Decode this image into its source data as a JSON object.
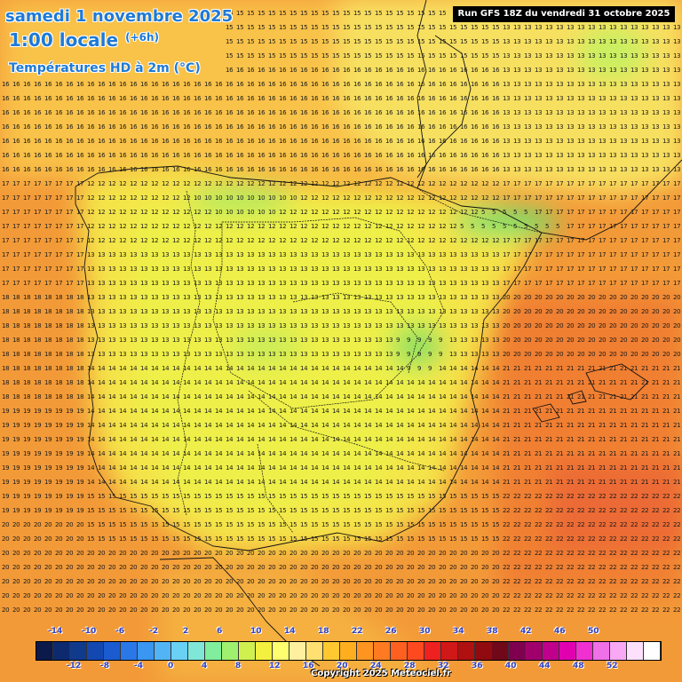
{
  "header": {
    "date_line": "samedi 1 novembre 2025",
    "time_line": "1:00 locale",
    "offset": "(+6h)",
    "variable": "Températures HD à 2m (°C)",
    "run_info": "Run GFS 18Z du vendredi 31 octobre 2025"
  },
  "legend": {
    "top_labels": [
      "-14",
      "-10",
      "-6",
      "-2",
      "2",
      "6",
      "10",
      "14",
      "18",
      "22",
      "26",
      "30",
      "34",
      "38",
      "42",
      "46",
      "50"
    ],
    "bottom_labels": [
      "-12",
      "-8",
      "-4",
      "0",
      "4",
      "8",
      "12",
      "16",
      "20",
      "24",
      "28",
      "32",
      "36",
      "40",
      "44",
      "48",
      "52"
    ],
    "colors": [
      "#0b1a4a",
      "#0d2a6e",
      "#103a8c",
      "#1248b0",
      "#1a5cd0",
      "#2a78e8",
      "#3a96f0",
      "#52b4f4",
      "#6ad0f4",
      "#80e6d8",
      "#80ee9c",
      "#a0f070",
      "#d0f050",
      "#f4f040",
      "#ffff70",
      "#fff0a0",
      "#ffe070",
      "#ffc830",
      "#ffae20",
      "#ff9420",
      "#ff7a20",
      "#ff6020",
      "#ff4a20",
      "#ee2020",
      "#d01818",
      "#b01010",
      "#900a10",
      "#70081a",
      "#800050",
      "#a0006c",
      "#c0008c",
      "#e000b0",
      "#f030d0",
      "#f070e8",
      "#f8a8f4",
      "#fce0fc",
      "#ffffff"
    ]
  },
  "map_labels": {
    "temperature_grid_note": ""
  },
  "copyright": "Copyright 2025 Meteociel.fr"
}
